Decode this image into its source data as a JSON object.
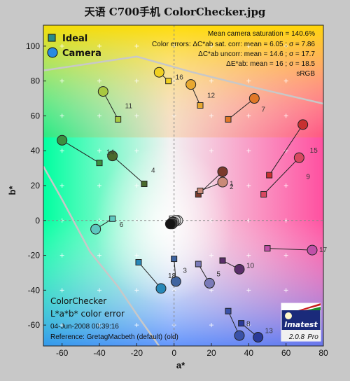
{
  "title": "天语 C700手机 ColorChecker.jpg",
  "colors": {
    "text": "#111111",
    "background": "#c8c8c8"
  },
  "chart_data": {
    "type": "scatter",
    "xlabel": "a*",
    "ylabel": "b*",
    "xlim": [
      -70,
      80
    ],
    "ylim": [
      -72,
      112
    ],
    "xticks": [
      -60,
      -40,
      -20,
      0,
      20,
      40,
      60,
      80
    ],
    "yticks": [
      -60,
      -40,
      -20,
      0,
      20,
      40,
      60,
      80,
      100
    ],
    "grid": true,
    "legend": {
      "placement": "top-left",
      "entries": [
        "Ideal",
        "Camera"
      ]
    },
    "stats": [
      "Mean camera saturation = 140.6%",
      "Color errors:  ΔC*ab sat. corr:  mean = 6.05 ;  σ = 7.86",
      "ΔC*ab uncorr:  mean = 14.6 ;  σ = 17.7",
      "ΔE*ab:  mean = 16 ;  σ = 18.5",
      "sRGB"
    ],
    "info": {
      "heading": "ColorChecker",
      "subheading": "L*a*b* color error",
      "date": "04-Jun-2008 00:39:16",
      "reference": "Reference: GretagMacbeth (default) (old)"
    },
    "logo": {
      "name": "Imatest",
      "version": "2.0.8",
      "edition": "Pro"
    },
    "patches": [
      {
        "id": "1",
        "ideal": [
          13,
          15
        ],
        "camera": [
          26,
          28
        ],
        "color": "#7a3a2c"
      },
      {
        "id": "2",
        "ideal": [
          14,
          17
        ],
        "camera": [
          26,
          22
        ],
        "color": "#c98a78"
      },
      {
        "id": "3",
        "ideal": [
          0,
          -22
        ],
        "camera": [
          1,
          -35
        ],
        "color": "#3e63a0"
      },
      {
        "id": "4",
        "ideal": [
          -16,
          21
        ],
        "camera": [
          -33,
          37
        ],
        "color": "#4a6a2c"
      },
      {
        "id": "5",
        "ideal": [
          13,
          -25
        ],
        "camera": [
          19,
          -36
        ],
        "color": "#7a7ab8"
      },
      {
        "id": "6",
        "ideal": [
          -33,
          1
        ],
        "camera": [
          -42,
          -5
        ],
        "color": "#5ec8c0"
      },
      {
        "id": "7",
        "ideal": [
          29,
          58
        ],
        "camera": [
          43,
          70
        ],
        "color": "#e07828"
      },
      {
        "id": "8",
        "ideal": [
          29,
          -52
        ],
        "camera": [
          35,
          -66
        ],
        "color": "#3a52a8"
      },
      {
        "id": "9",
        "ideal": [
          48,
          15
        ],
        "camera": [
          67,
          36
        ],
        "color": "#d84860"
      },
      {
        "id": "10",
        "ideal": [
          26,
          -23
        ],
        "camera": [
          35,
          -28
        ],
        "color": "#5a2e6a"
      },
      {
        "id": "11",
        "ideal": [
          -30,
          58
        ],
        "camera": [
          -38,
          74
        ],
        "color": "#a8c840"
      },
      {
        "id": "12",
        "ideal": [
          14,
          66
        ],
        "camera": [
          9,
          78
        ],
        "color": "#e8a830"
      },
      {
        "id": "13",
        "ideal": [
          36,
          -59
        ],
        "camera": [
          45,
          -67
        ],
        "color": "#2a3a98"
      },
      {
        "id": "14",
        "ideal": [
          -40,
          33
        ],
        "camera": [
          -60,
          46
        ],
        "color": "#3a9040"
      },
      {
        "id": "15",
        "ideal": [
          51,
          26
        ],
        "camera": [
          69,
          55
        ],
        "color": "#c83030"
      },
      {
        "id": "16",
        "ideal": [
          -3,
          80
        ],
        "camera": [
          -8,
          85
        ],
        "color": "#f0d020"
      },
      {
        "id": "17",
        "ideal": [
          50,
          -16
        ],
        "camera": [
          74,
          -17
        ],
        "color": "#c050a8"
      },
      {
        "id": "18",
        "ideal": [
          -19,
          -24
        ],
        "camera": [
          -7,
          -39
        ],
        "color": "#2888b8"
      },
      {
        "id": "19",
        "ideal": [
          -1,
          1
        ],
        "camera": [
          2,
          0
        ],
        "color": "#f5f5f5"
      },
      {
        "id": "20",
        "ideal": [
          0,
          0
        ],
        "camera": [
          1,
          0
        ],
        "color": "#cccccc"
      },
      {
        "id": "21",
        "ideal": [
          0,
          0
        ],
        "camera": [
          0,
          -1
        ],
        "color": "#9a9a9a"
      },
      {
        "id": "22",
        "ideal": [
          0,
          0
        ],
        "camera": [
          -1,
          -1
        ],
        "color": "#6a6a6a"
      },
      {
        "id": "23",
        "ideal": [
          0,
          0
        ],
        "camera": [
          -1,
          -2
        ],
        "color": "#3c3c3c"
      },
      {
        "id": "24",
        "ideal": [
          0,
          0
        ],
        "camera": [
          -2,
          -2
        ],
        "color": "#151515"
      }
    ]
  }
}
